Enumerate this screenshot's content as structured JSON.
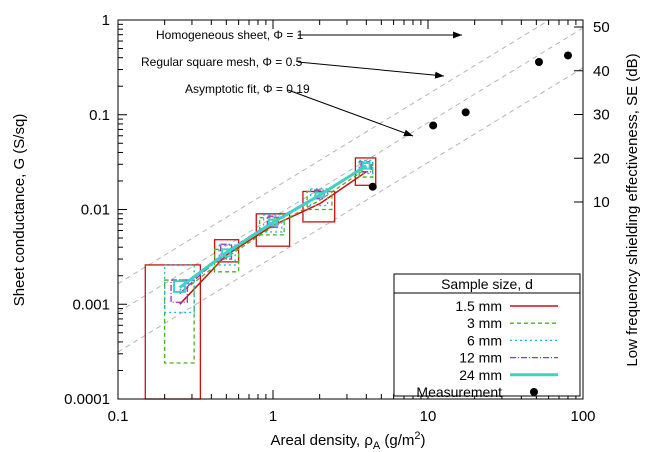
{
  "chart_data": {
    "type": "line",
    "xlabel": "Areal density, ρ",
    "xlabel_sub": "A",
    "xlabel_unit": " (g/m",
    "xlabel_sup": "2",
    "xlabel_close": ")",
    "ylabel": "Sheet conductance, G (S/sq)",
    "y2label": "Low frequency shielding effectiveness, SE (dB)",
    "x_scale": "log",
    "y_scale": "log",
    "xlim": [
      0.1,
      100
    ],
    "ylim": [
      0.0001,
      1
    ],
    "y2lim": [
      0,
      50
    ],
    "x_ticks": [
      0.1,
      1,
      10,
      100
    ],
    "x_tick_labels": [
      "0.1",
      "1",
      "10",
      "100"
    ],
    "y_ticks": [
      0.0001,
      0.001,
      0.01,
      0.1,
      1
    ],
    "y_tick_labels": [
      "0.0001",
      "0.001",
      "0.01",
      "0.1",
      "1"
    ],
    "y2_ticks": [
      10,
      20,
      30,
      40,
      50
    ],
    "y2_tick_labels": [
      "10",
      "20",
      "30",
      "40",
      "50"
    ],
    "grid": false,
    "reference_lines": [
      {
        "label": "Homogeneous sheet, Φ = 1",
        "phi": 1
      },
      {
        "label": "Regular square mesh, Φ = 0.5",
        "phi": 0.5
      },
      {
        "label": "Asymptotic fit, Φ = 0.19",
        "phi": 0.19
      }
    ],
    "legend_title": "Sample size, d",
    "legend_position": "bottom-right",
    "series": [
      {
        "name": "1.5 mm",
        "color": "#cc1010",
        "dash": "",
        "width": 1.5,
        "x": [
          0.25,
          0.5,
          1.0,
          2.0,
          4.0
        ],
        "y": [
          0.001,
          0.0033,
          0.0068,
          0.0115,
          0.025
        ],
        "boxes": [
          [
            0.15,
            0.34,
            0.0001,
            0.0026
          ],
          [
            0.42,
            0.6,
            0.0028,
            0.0048
          ],
          [
            0.78,
            1.28,
            0.0041,
            0.009
          ],
          [
            1.56,
            2.5,
            0.0074,
            0.0155
          ],
          [
            3.4,
            4.6,
            0.018,
            0.035
          ]
        ]
      },
      {
        "name": "3 mm",
        "color": "#4caf1c",
        "dash": "4,3",
        "width": 1.3,
        "x": [
          0.25,
          0.5,
          1.0,
          2.0,
          4.0
        ],
        "y": [
          0.0013,
          0.0031,
          0.0066,
          0.0125,
          0.027
        ],
        "boxes": [
          [
            0.2,
            0.31,
            0.00024,
            0.0018
          ],
          [
            0.42,
            0.6,
            0.0022,
            0.0038
          ],
          [
            0.82,
            1.18,
            0.0054,
            0.0082
          ],
          [
            1.66,
            2.4,
            0.01,
            0.0155
          ],
          [
            3.6,
            4.4,
            0.022,
            0.032
          ]
        ]
      },
      {
        "name": "6 mm",
        "color": "#20b4dc",
        "dash": "2,3",
        "width": 1.3,
        "x": [
          0.25,
          0.5,
          1.0,
          2.0,
          4.0
        ],
        "y": [
          0.0014,
          0.0034,
          0.0071,
          0.0138,
          0.029
        ],
        "boxes": [
          [
            0.2,
            0.31,
            0.00082,
            0.0026
          ],
          [
            0.45,
            0.57,
            0.0026,
            0.0042
          ],
          [
            0.87,
            1.14,
            0.0058,
            0.0088
          ],
          [
            1.75,
            2.25,
            0.011,
            0.0165
          ],
          [
            3.6,
            4.4,
            0.024,
            0.033
          ]
        ]
      },
      {
        "name": "12 mm",
        "color": "#9b30c8",
        "dash": "6,2,1,2",
        "width": 1.3,
        "x": [
          0.25,
          0.5,
          1.0,
          2.0,
          4.0
        ],
        "y": [
          0.0013,
          0.0036,
          0.0075,
          0.0145,
          0.028
        ],
        "boxes": [
          [
            0.22,
            0.28,
            0.00105,
            0.0018
          ],
          [
            0.46,
            0.54,
            0.003,
            0.0043
          ],
          [
            0.92,
            1.08,
            0.0065,
            0.0085
          ],
          [
            1.86,
            2.14,
            0.013,
            0.016
          ],
          [
            3.7,
            4.3,
            0.025,
            0.031
          ]
        ]
      },
      {
        "name": "24 mm",
        "color": "#3fd2c4",
        "dash": "",
        "width": 3,
        "x": [
          0.25,
          0.5,
          1.0,
          2.0,
          4.0
        ],
        "y": [
          0.0015,
          0.0035,
          0.0073,
          0.0142,
          0.029
        ],
        "boxes": [
          [
            0.23,
            0.27,
            0.00135,
            0.00175
          ],
          [
            0.47,
            0.53,
            0.0032,
            0.0038
          ],
          [
            0.94,
            1.06,
            0.0068,
            0.0078
          ],
          [
            1.88,
            2.12,
            0.0135,
            0.015
          ],
          [
            3.8,
            4.2,
            0.027,
            0.031
          ]
        ]
      }
    ],
    "measurement": {
      "name": "Measurement",
      "axis": "right",
      "color": "#000000",
      "x": [
        4.4,
        10.8,
        17.5,
        52,
        80
      ],
      "y": [
        13.5,
        27.5,
        30.5,
        42,
        43.5
      ]
    }
  }
}
